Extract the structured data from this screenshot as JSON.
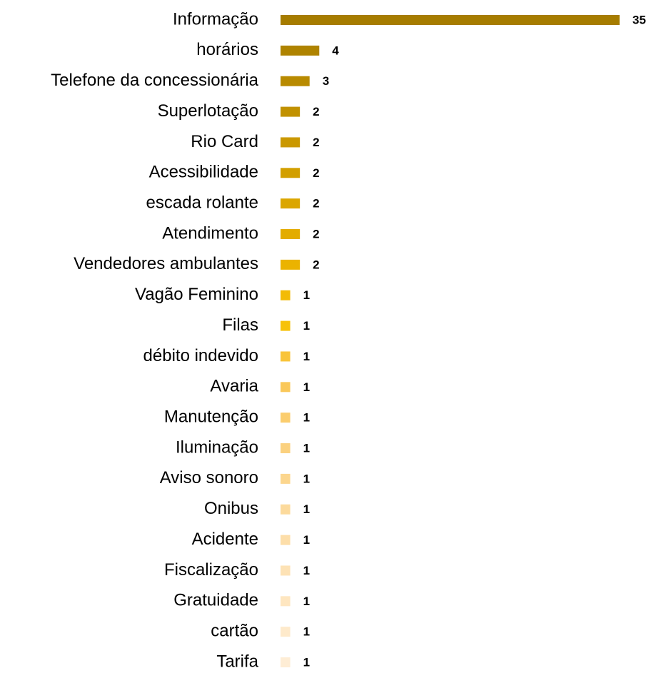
{
  "chart_data": {
    "type": "bar",
    "orientation": "horizontal",
    "categories": [
      "Informação",
      "horários",
      "Telefone da concessionária",
      "Superlotação",
      "Rio Card",
      "Acessibilidade",
      "escada rolante",
      "Atendimento",
      "Vendedores ambulantes",
      "Vagão Feminino",
      "Filas",
      "débito indevido",
      "Avaria",
      "Manutenção",
      "Iluminação",
      "Aviso sonoro",
      "Onibus",
      "Acidente",
      "Fiscalização",
      "Gratuidade",
      "cartão",
      "Tarifa"
    ],
    "values": [
      35,
      4,
      3,
      2,
      2,
      2,
      2,
      2,
      2,
      1,
      1,
      1,
      1,
      1,
      1,
      1,
      1,
      1,
      1,
      1,
      1,
      1
    ],
    "colors": [
      "#A67C00",
      "#AF8300",
      "#B88A00",
      "#C19100",
      "#CA9800",
      "#D29F00",
      "#DBA600",
      "#E3AC00",
      "#EBB300",
      "#F3BB05",
      "#F7C20A",
      "#F9C43A",
      "#FAC85A",
      "#FBCD6E",
      "#FBD17F",
      "#FCD68E",
      "#FCDA9C",
      "#FDDEA9",
      "#FDE2B5",
      "#FEE6C0",
      "#FEEACB",
      "#FEEDD5"
    ]
  }
}
